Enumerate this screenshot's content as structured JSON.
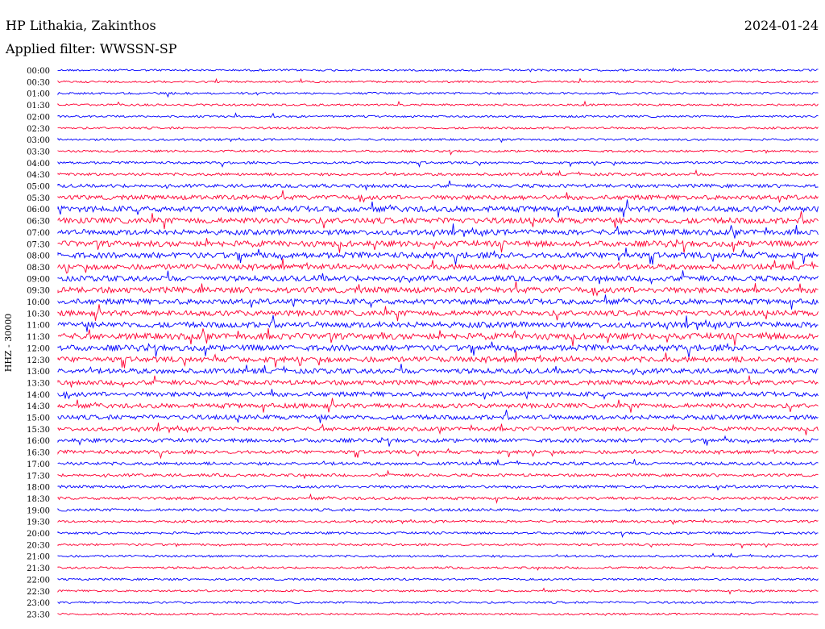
{
  "header": {
    "station": "HP Lithakia, Zakinthos",
    "date": "2024-01-24",
    "filter": "Applied filter: WWSSN-SP"
  },
  "axis": {
    "ylabel": "HHZ - 30000"
  },
  "colors": {
    "even_trace": "#0000ff",
    "odd_trace": "#ff0033",
    "background": "#ffffff",
    "text": "#000000"
  },
  "chart_data": {
    "type": "helicorder",
    "title": "HP Lithakia, Zakinthos",
    "date": "2024-01-24",
    "filter": "WWSSN-SP",
    "ylabel": "HHZ - 30000",
    "minutes_per_line": 30,
    "lines": [
      {
        "label": "00:00",
        "activity": 0.1
      },
      {
        "label": "00:30",
        "activity": 0.1
      },
      {
        "label": "01:00",
        "activity": 0.12
      },
      {
        "label": "01:30",
        "activity": 0.1
      },
      {
        "label": "02:00",
        "activity": 0.1
      },
      {
        "label": "02:30",
        "activity": 0.12
      },
      {
        "label": "03:00",
        "activity": 0.12
      },
      {
        "label": "03:30",
        "activity": 0.12
      },
      {
        "label": "04:00",
        "activity": 0.15
      },
      {
        "label": "04:30",
        "activity": 0.2
      },
      {
        "label": "05:00",
        "activity": 0.3
      },
      {
        "label": "05:30",
        "activity": 0.45
      },
      {
        "label": "06:00",
        "activity": 0.6
      },
      {
        "label": "06:30",
        "activity": 0.6
      },
      {
        "label": "07:00",
        "activity": 0.55
      },
      {
        "label": "07:30",
        "activity": 0.6
      },
      {
        "label": "08:00",
        "activity": 0.6
      },
      {
        "label": "08:30",
        "activity": 0.55
      },
      {
        "label": "09:00",
        "activity": 0.55
      },
      {
        "label": "09:30",
        "activity": 0.6
      },
      {
        "label": "10:00",
        "activity": 0.55
      },
      {
        "label": "10:30",
        "activity": 0.55
      },
      {
        "label": "11:00",
        "activity": 0.6
      },
      {
        "label": "11:30",
        "activity": 0.65
      },
      {
        "label": "12:00",
        "activity": 0.6
      },
      {
        "label": "12:30",
        "activity": 0.55
      },
      {
        "label": "13:00",
        "activity": 0.5
      },
      {
        "label": "13:30",
        "activity": 0.45
      },
      {
        "label": "14:00",
        "activity": 0.45
      },
      {
        "label": "14:30",
        "activity": 0.45
      },
      {
        "label": "15:00",
        "activity": 0.45
      },
      {
        "label": "15:30",
        "activity": 0.35
      },
      {
        "label": "16:00",
        "activity": 0.35
      },
      {
        "label": "16:30",
        "activity": 0.3
      },
      {
        "label": "17:00",
        "activity": 0.25
      },
      {
        "label": "17:30",
        "activity": 0.22
      },
      {
        "label": "18:00",
        "activity": 0.2
      },
      {
        "label": "18:30",
        "activity": 0.22
      },
      {
        "label": "19:00",
        "activity": 0.2
      },
      {
        "label": "19:30",
        "activity": 0.15
      },
      {
        "label": "20:00",
        "activity": 0.15
      },
      {
        "label": "20:30",
        "activity": 0.12
      },
      {
        "label": "21:00",
        "activity": 0.12
      },
      {
        "label": "21:30",
        "activity": 0.12
      },
      {
        "label": "22:00",
        "activity": 0.12
      },
      {
        "label": "22:30",
        "activity": 0.1
      },
      {
        "label": "23:00",
        "activity": 0.12
      },
      {
        "label": "23:30",
        "activity": 0.1
      }
    ]
  }
}
